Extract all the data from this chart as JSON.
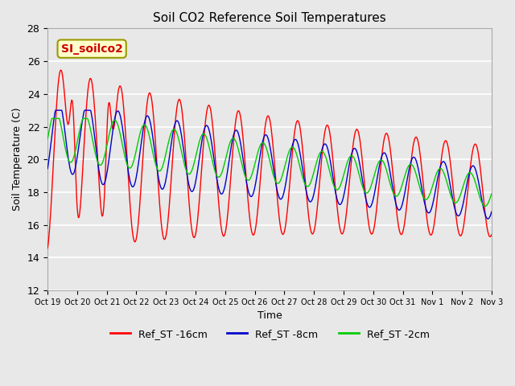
{
  "title": "Soil CO2 Reference Soil Temperatures",
  "xlabel": "Time",
  "ylabel": "Soil Temperature (C)",
  "ylim": [
    12,
    28
  ],
  "yticks": [
    12,
    14,
    16,
    18,
    20,
    22,
    24,
    26,
    28
  ],
  "xtick_labels": [
    "Oct 19",
    "Oct 20",
    "Oct 21",
    "Oct 22",
    "Oct 23",
    "Oct 24",
    "Oct 25",
    "Oct 26",
    "Oct 27",
    "Oct 28",
    "Oct 29",
    "Oct 30",
    "Oct 31",
    "Nov 1",
    "Nov 2",
    "Nov 3"
  ],
  "annotation_text": "SI_soilco2",
  "annotation_bg": "#ffffcc",
  "annotation_fg": "#cc0000",
  "legend_entries": [
    "Ref_ST -16cm",
    "Ref_ST -8cm",
    "Ref_ST -2cm"
  ],
  "line_colors": [
    "#ff0000",
    "#0000cc",
    "#00cc00"
  ],
  "background_color": "#e8e8e8",
  "grid_color": "#ffffff"
}
